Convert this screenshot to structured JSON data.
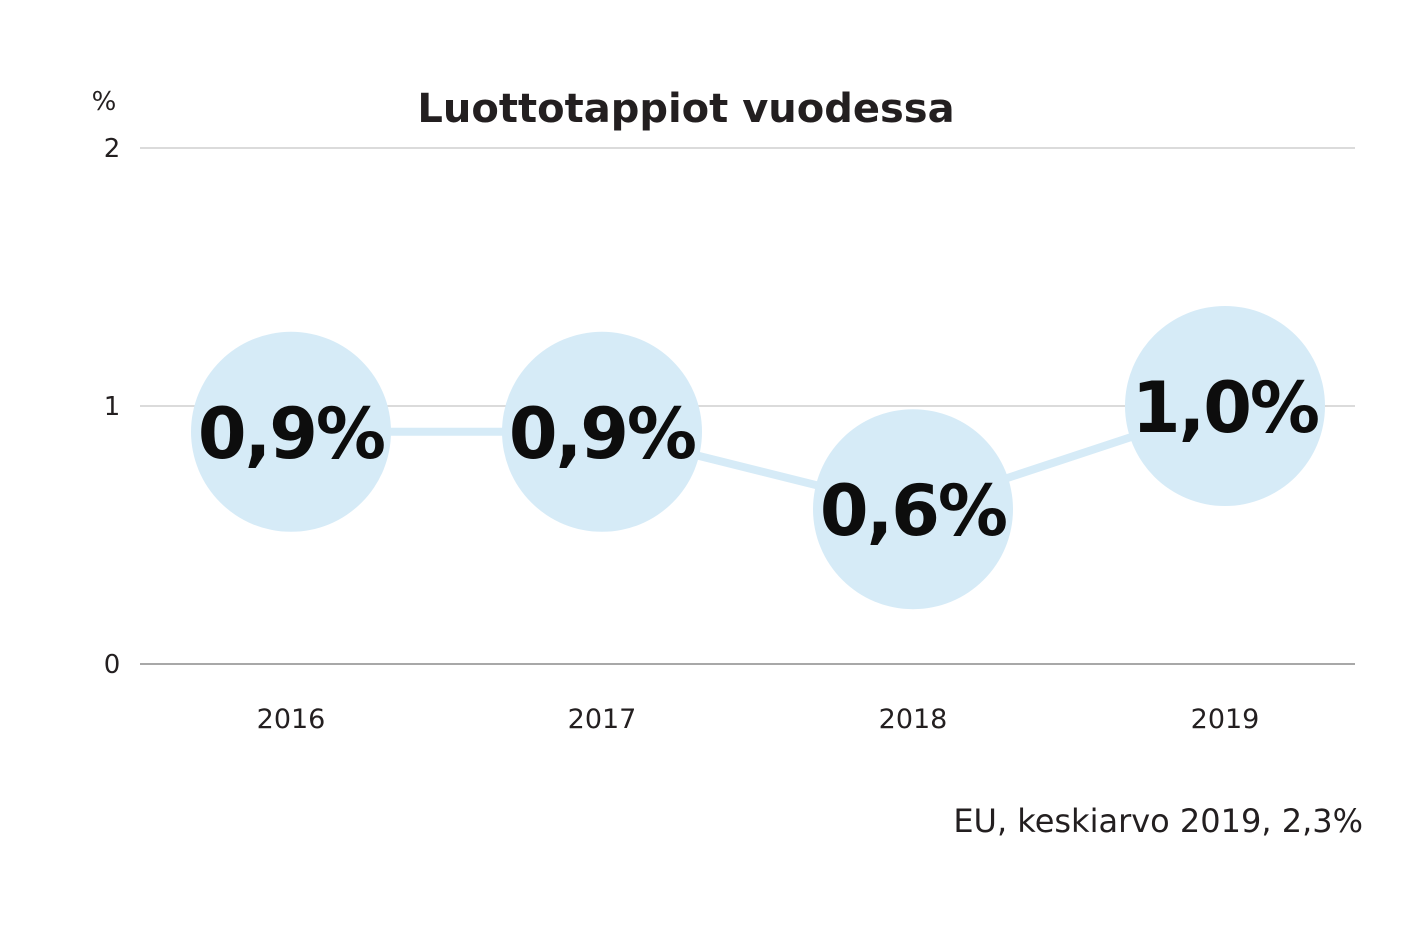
{
  "chart_data": {
    "type": "line",
    "title": "Luottotappiot vuodessa",
    "ylabel": "%",
    "xlabel": "",
    "categories": [
      "2016",
      "2017",
      "2018",
      "2019"
    ],
    "series": [
      {
        "values": [
          0.9,
          0.9,
          0.6,
          1.0
        ],
        "labels": [
          "0,9%",
          "0,9%",
          "0,6%",
          "1,0%"
        ]
      }
    ],
    "ylim": [
      0,
      2
    ],
    "yticks": [
      0,
      1,
      2
    ],
    "ytick_labels": [
      "0",
      "1",
      "2"
    ],
    "grid": true,
    "note": "EU, keskiarvo 2019, 2,3%"
  },
  "colors": {
    "marker_fill": "#d6ebf7",
    "line": "#d6ebf7",
    "grid": "#cfcfcf",
    "text": "#231f20"
  }
}
